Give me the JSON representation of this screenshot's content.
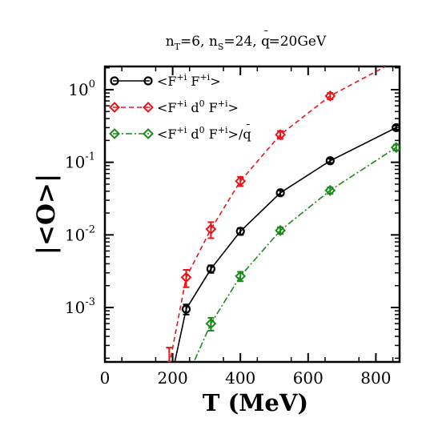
{
  "chart_data": {
    "type": "line",
    "title": {
      "main_parts": [
        "n",
        "T",
        "=6, n",
        "S",
        "=24, q",
        "=20GeV"
      ],
      "qbar_mark": "¯"
    },
    "xlabel": "T (MeV)",
    "ylabel": "|<O>|",
    "xlim": [
      0,
      870
    ],
    "ylim_log10": [
      -3.75,
      0.32
    ],
    "x_scale": "linear",
    "y_scale": "log",
    "x_ticks": [
      0,
      200,
      400,
      600,
      800
    ],
    "x_tick_labels": [
      "0",
      "200",
      "400",
      "600",
      "800"
    ],
    "y_major_ticks": [
      0.001,
      0.01,
      0.1,
      1
    ],
    "y_tick_labels": [
      {
        "base": "10",
        "exp": "-3"
      },
      {
        "base": "10",
        "exp": "-2"
      },
      {
        "base": "10",
        "exp": "-1"
      },
      {
        "base": "10",
        "exp": "0"
      }
    ],
    "legend_position": "top-left",
    "series": [
      {
        "name": "<F+i F+i>",
        "legend_parts": [
          "<F",
          "+i",
          " F",
          "+i",
          ">"
        ],
        "color": "#000000",
        "marker": "circle",
        "dash": "solid",
        "x": [
          200,
          240,
          313,
          400,
          518,
          665,
          860
        ],
        "y": [
          0.00013,
          0.00095,
          0.0034,
          0.0112,
          0.038,
          0.105,
          0.3
        ],
        "err": [
          0.0,
          0.00015,
          0.0004,
          0.0012,
          0.003,
          0.007,
          0.02
        ]
      },
      {
        "name": "<F+i d0 F+i>",
        "legend_parts": [
          "<F",
          "+i",
          " d",
          "0",
          " F",
          "+i",
          ">"
        ],
        "color": "#e8141a",
        "marker": "diamond",
        "dash": "dashed",
        "x": [
          190,
          240,
          313,
          400,
          518,
          665,
          860
        ],
        "y": [
          0.00016,
          0.0026,
          0.012,
          0.055,
          0.24,
          0.82,
          2.5
        ],
        "err": [
          0.00012,
          0.0007,
          0.003,
          0.008,
          0.03,
          0.08,
          0.2
        ]
      },
      {
        "name": "<F+i d0 F+i>/q",
        "legend_parts": [
          "<F",
          "+i",
          " d",
          "0",
          " F",
          "+i",
          ">/q"
        ],
        "color": "#1a8a1a",
        "marker": "diamond",
        "dash": "dashdot",
        "x": [
          250,
          313,
          400,
          518,
          665,
          860
        ],
        "y": [
          0.00013,
          0.0006,
          0.0027,
          0.0115,
          0.041,
          0.16
        ],
        "err": [
          0.0,
          0.00012,
          0.0004,
          0.0012,
          0.004,
          0.015
        ]
      }
    ]
  }
}
